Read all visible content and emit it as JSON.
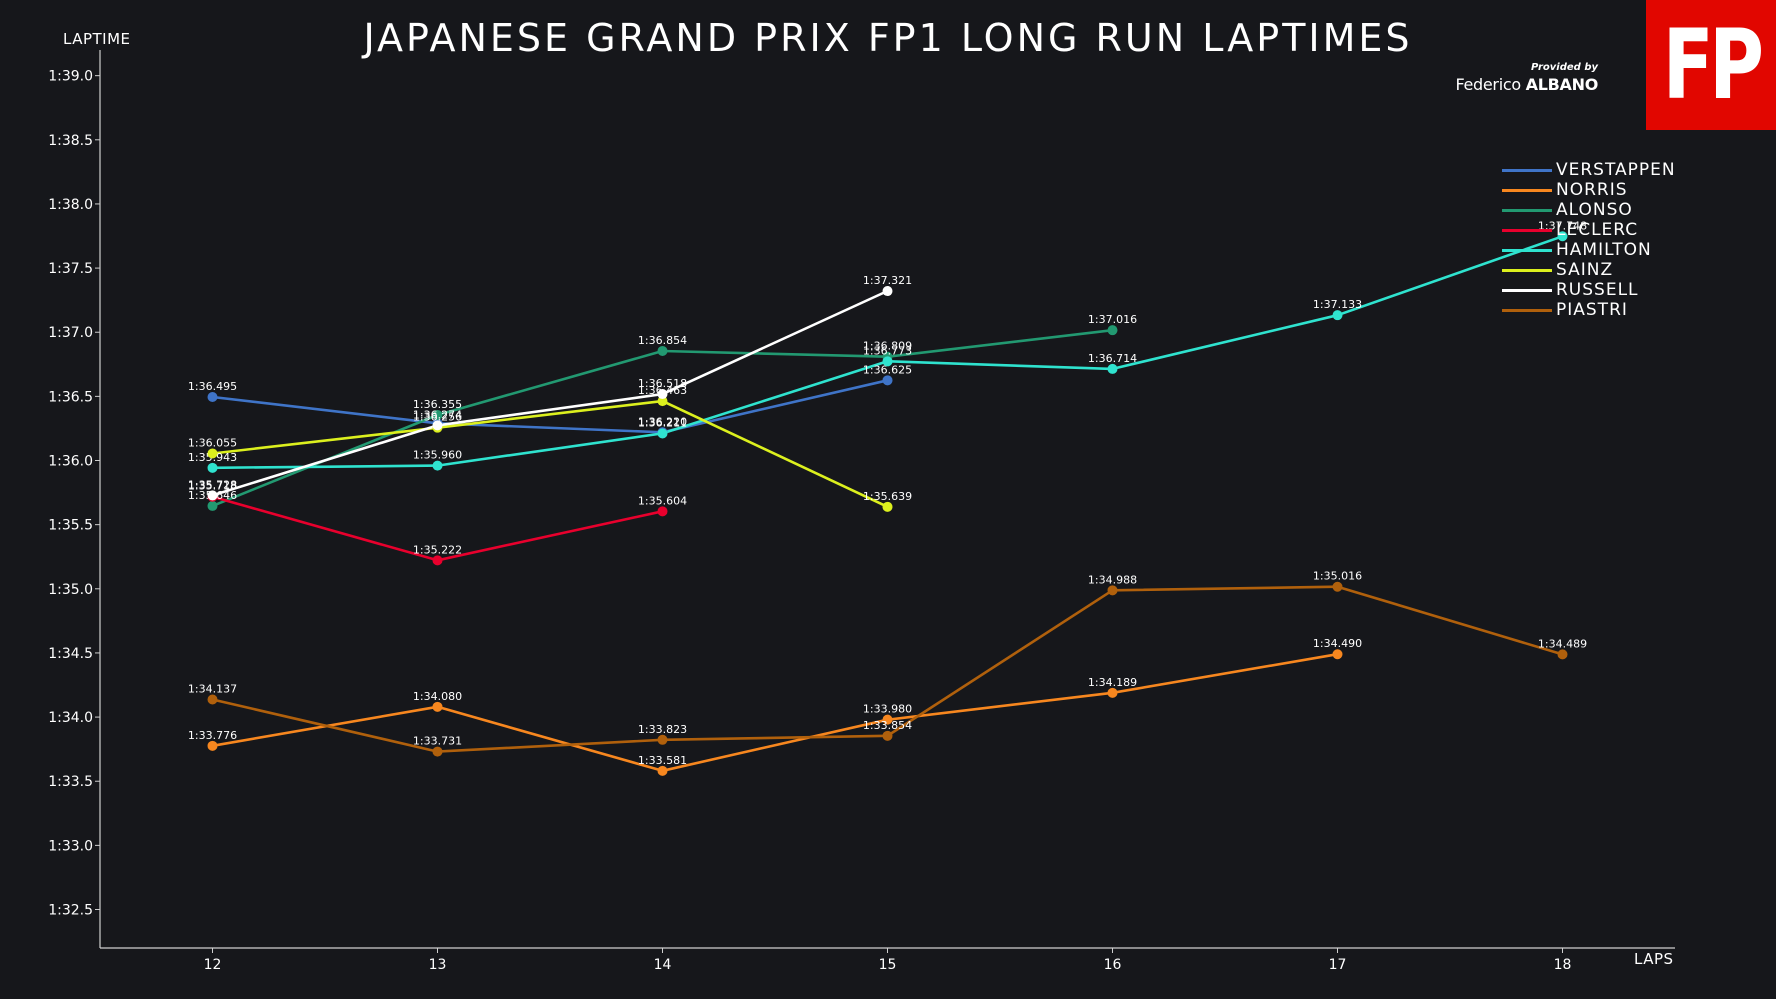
{
  "header": {
    "title": "JAPANESE GRAND PRIX FP1 LONG RUN LAPTIMES",
    "provided_by": "Provided by",
    "author_first": "Federico",
    "author_last": "ALBANO",
    "logo_text": "FP"
  },
  "colors": {
    "background": "#16171b",
    "axis": "#cfcfcf",
    "logo_bg": "#e10600"
  },
  "chart_data": {
    "type": "line",
    "title": "JAPANESE GRAND PRIX FP1 LONG RUN LAPTIMES",
    "xlabel": "LAPS",
    "ylabel": "LAPTIME",
    "x_ticks": [
      12,
      13,
      14,
      15,
      16,
      17,
      18
    ],
    "y_ticks": [
      92.5,
      93.0,
      93.5,
      94.0,
      94.5,
      95.0,
      95.5,
      96.0,
      96.5,
      97.0,
      97.5,
      98.0,
      98.5,
      99.0
    ],
    "y_tick_labels": [
      "1:32.5",
      "1:33.0",
      "1:33.5",
      "1:34.0",
      "1:34.5",
      "1:35.0",
      "1:35.5",
      "1:36.0",
      "1:36.5",
      "1:37.0",
      "1:37.5",
      "1:38.0",
      "1:38.5",
      "1:39.0"
    ],
    "xlim": [
      11.5,
      18.5
    ],
    "ylim": [
      92.2,
      99.2
    ],
    "grid": false,
    "legend_position": "top-right",
    "series": [
      {
        "name": "VERSTAPPEN",
        "color": "#3f74c8",
        "points": [
          [
            12,
            96.495
          ],
          [
            13,
            96.29
          ],
          [
            14,
            96.22
          ],
          [
            15,
            96.625
          ]
        ],
        "labels": [
          "1:36.495",
          "",
          "1:36.220",
          "1:36.625"
        ]
      },
      {
        "name": "NORRIS",
        "color": "#f7871f",
        "points": [
          [
            12,
            93.776
          ],
          [
            13,
            94.08
          ],
          [
            14,
            93.581
          ],
          [
            15,
            93.98
          ],
          [
            16,
            94.189
          ],
          [
            17,
            94.49
          ]
        ],
        "labels": [
          "1:33.776",
          "1:34.080",
          "1:33.581",
          "1:33.980",
          "1:34.189",
          "1:34.490"
        ]
      },
      {
        "name": "ALONSO",
        "color": "#229971",
        "points": [
          [
            12,
            95.646
          ],
          [
            13,
            96.355
          ],
          [
            14,
            96.854
          ],
          [
            15,
            96.809
          ],
          [
            16,
            97.016
          ]
        ],
        "labels": [
          "1:35.646",
          "1:36.355",
          "1:36.854",
          "1:36.809",
          "1:37.016"
        ]
      },
      {
        "name": "LECLERC",
        "color": "#e8002d",
        "points": [
          [
            12,
            95.718
          ],
          [
            13,
            95.222
          ],
          [
            14,
            95.604
          ]
        ],
        "labels": [
          "1:35.718",
          "1:35.222",
          "1:35.604"
        ]
      },
      {
        "name": "HAMILTON",
        "color": "#2fe3cf",
        "points": [
          [
            12,
            95.943
          ],
          [
            13,
            95.96
          ],
          [
            14,
            96.211
          ],
          [
            15,
            96.773
          ],
          [
            16,
            96.714
          ],
          [
            17,
            97.133
          ],
          [
            18,
            97.748
          ]
        ],
        "labels": [
          "1:35.943",
          "1:35.960",
          "1:36.211",
          "1:36.773",
          "1:36.714",
          "1:37.133",
          "1:37.748"
        ]
      },
      {
        "name": "SAINZ",
        "color": "#dcf01e",
        "points": [
          [
            12,
            96.055
          ],
          [
            13,
            96.256
          ],
          [
            14,
            96.463
          ],
          [
            15,
            95.639
          ]
        ],
        "labels": [
          "1:36.055",
          "1:36.256",
          "1:36.463",
          "1:35.639"
        ]
      },
      {
        "name": "RUSSELL",
        "color": "#ffffff",
        "points": [
          [
            12,
            95.728
          ],
          [
            13,
            96.274
          ],
          [
            14,
            96.518
          ],
          [
            15,
            97.321
          ]
        ],
        "labels": [
          "1:35.728",
          "1:36.274",
          "1:36.518",
          "1:37.321"
        ]
      },
      {
        "name": "PIASTRI",
        "color": "#b0600c",
        "points": [
          [
            12,
            94.137
          ],
          [
            13,
            93.731
          ],
          [
            14,
            93.823
          ],
          [
            15,
            93.854
          ],
          [
            16,
            94.988
          ],
          [
            17,
            95.016
          ],
          [
            18,
            94.489
          ]
        ],
        "labels": [
          "1:34.137",
          "1:33.731",
          "1:33.823",
          "1:33.854",
          "1:34.988",
          "1:35.016",
          "1:34.489"
        ]
      }
    ]
  }
}
